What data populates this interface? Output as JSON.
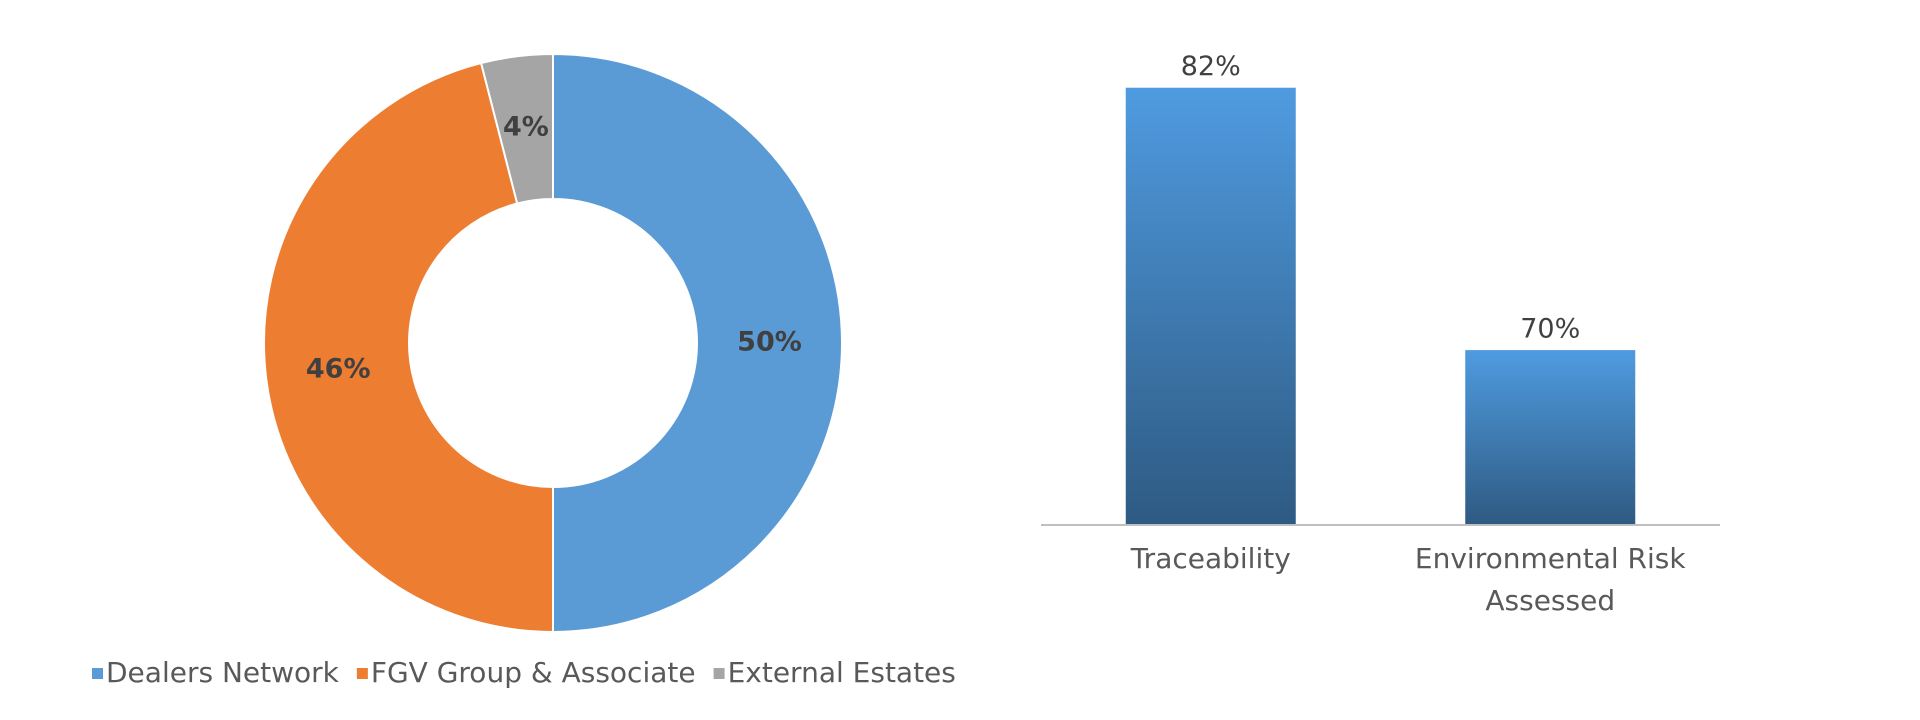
{
  "chart_data": [
    {
      "type": "pie",
      "categories": [
        "Dealers Network",
        "FGV Group & Associate",
        "External Estates"
      ],
      "values": [
        50,
        46,
        4
      ],
      "value_labels": [
        "50%",
        "46%",
        "4%"
      ],
      "colors": [
        "#5b9bd5",
        "#ed7d31",
        "#a5a5a5"
      ],
      "legend": "bottom"
    },
    {
      "type": "bar",
      "categories": [
        "Traceability",
        "Environmental Risk Assessed"
      ],
      "values": [
        82,
        70
      ],
      "value_labels": [
        "82%",
        "70%"
      ],
      "color": "#4f9be0",
      "ylim": [
        62,
        84
      ]
    }
  ]
}
